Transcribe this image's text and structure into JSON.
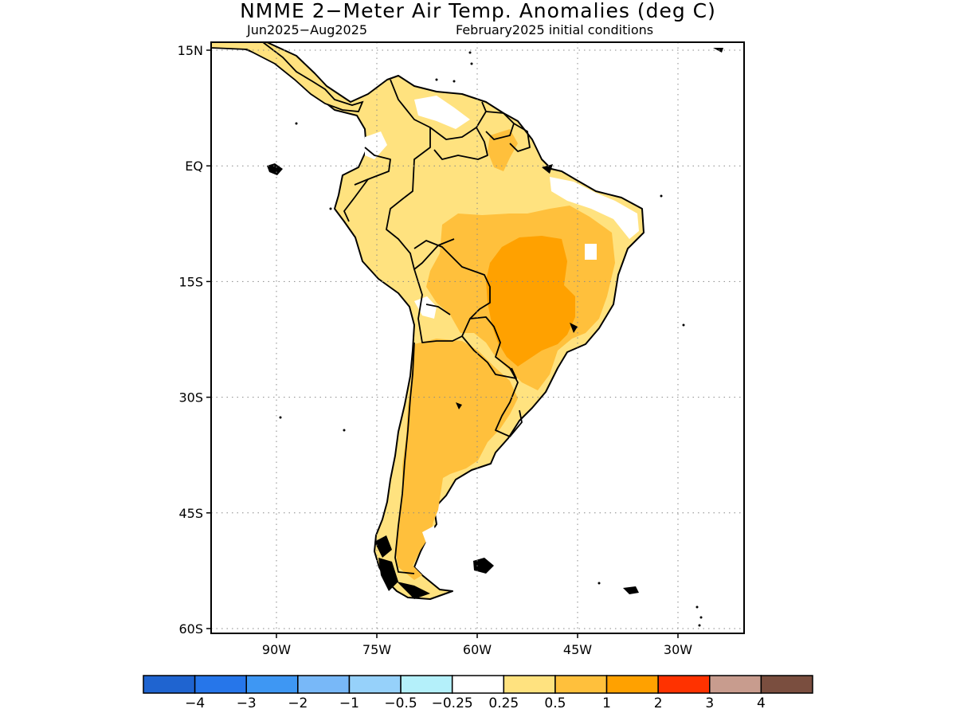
{
  "title": "NMME 2−Meter Air Temp. Anomalies (deg C)",
  "subtitle_left": "Jun2025−Aug2025",
  "subtitle_right": "February2025 initial conditions",
  "map": {
    "lon_range": [
      -97,
      -17
    ],
    "lat_range": [
      -60,
      16
    ],
    "lat_ticks": [
      {
        "value": 15,
        "label": "15N"
      },
      {
        "value": 0,
        "label": "EQ"
      },
      {
        "value": -15,
        "label": "15S"
      },
      {
        "value": -30,
        "label": "30S"
      },
      {
        "value": -45,
        "label": "45S"
      },
      {
        "value": -60,
        "label": "60S"
      }
    ],
    "lon_ticks": [
      {
        "value": -90,
        "label": "90W"
      },
      {
        "value": -75,
        "label": "75W"
      },
      {
        "value": -60,
        "label": "60W"
      },
      {
        "value": -45,
        "label": "45W"
      },
      {
        "value": -30,
        "label": "30W"
      }
    ],
    "grid": "dotted"
  },
  "colorbar": {
    "colors": [
      "#1f64d0",
      "#2676ea",
      "#3e97f3",
      "#78b8f8",
      "#96d1fa",
      "#b4f0fa",
      "#ffffff",
      "#ffe27f",
      "#ffc03c",
      "#ffa100",
      "#ff3200",
      "#c89c8e",
      "#7a4e3f"
    ],
    "labels": [
      "−4",
      "−3",
      "−2",
      "−1",
      "−0.5",
      "−0.25",
      "0.25",
      "0.5",
      "1",
      "2",
      "3",
      "4"
    ]
  },
  "legend_colors": {
    "ocean": "#ffffff",
    "land_0_25_to_0_5": "#ffe27f",
    "land_0_5_to_1": "#ffc03c",
    "land_1_to_2": "#ffa100"
  }
}
